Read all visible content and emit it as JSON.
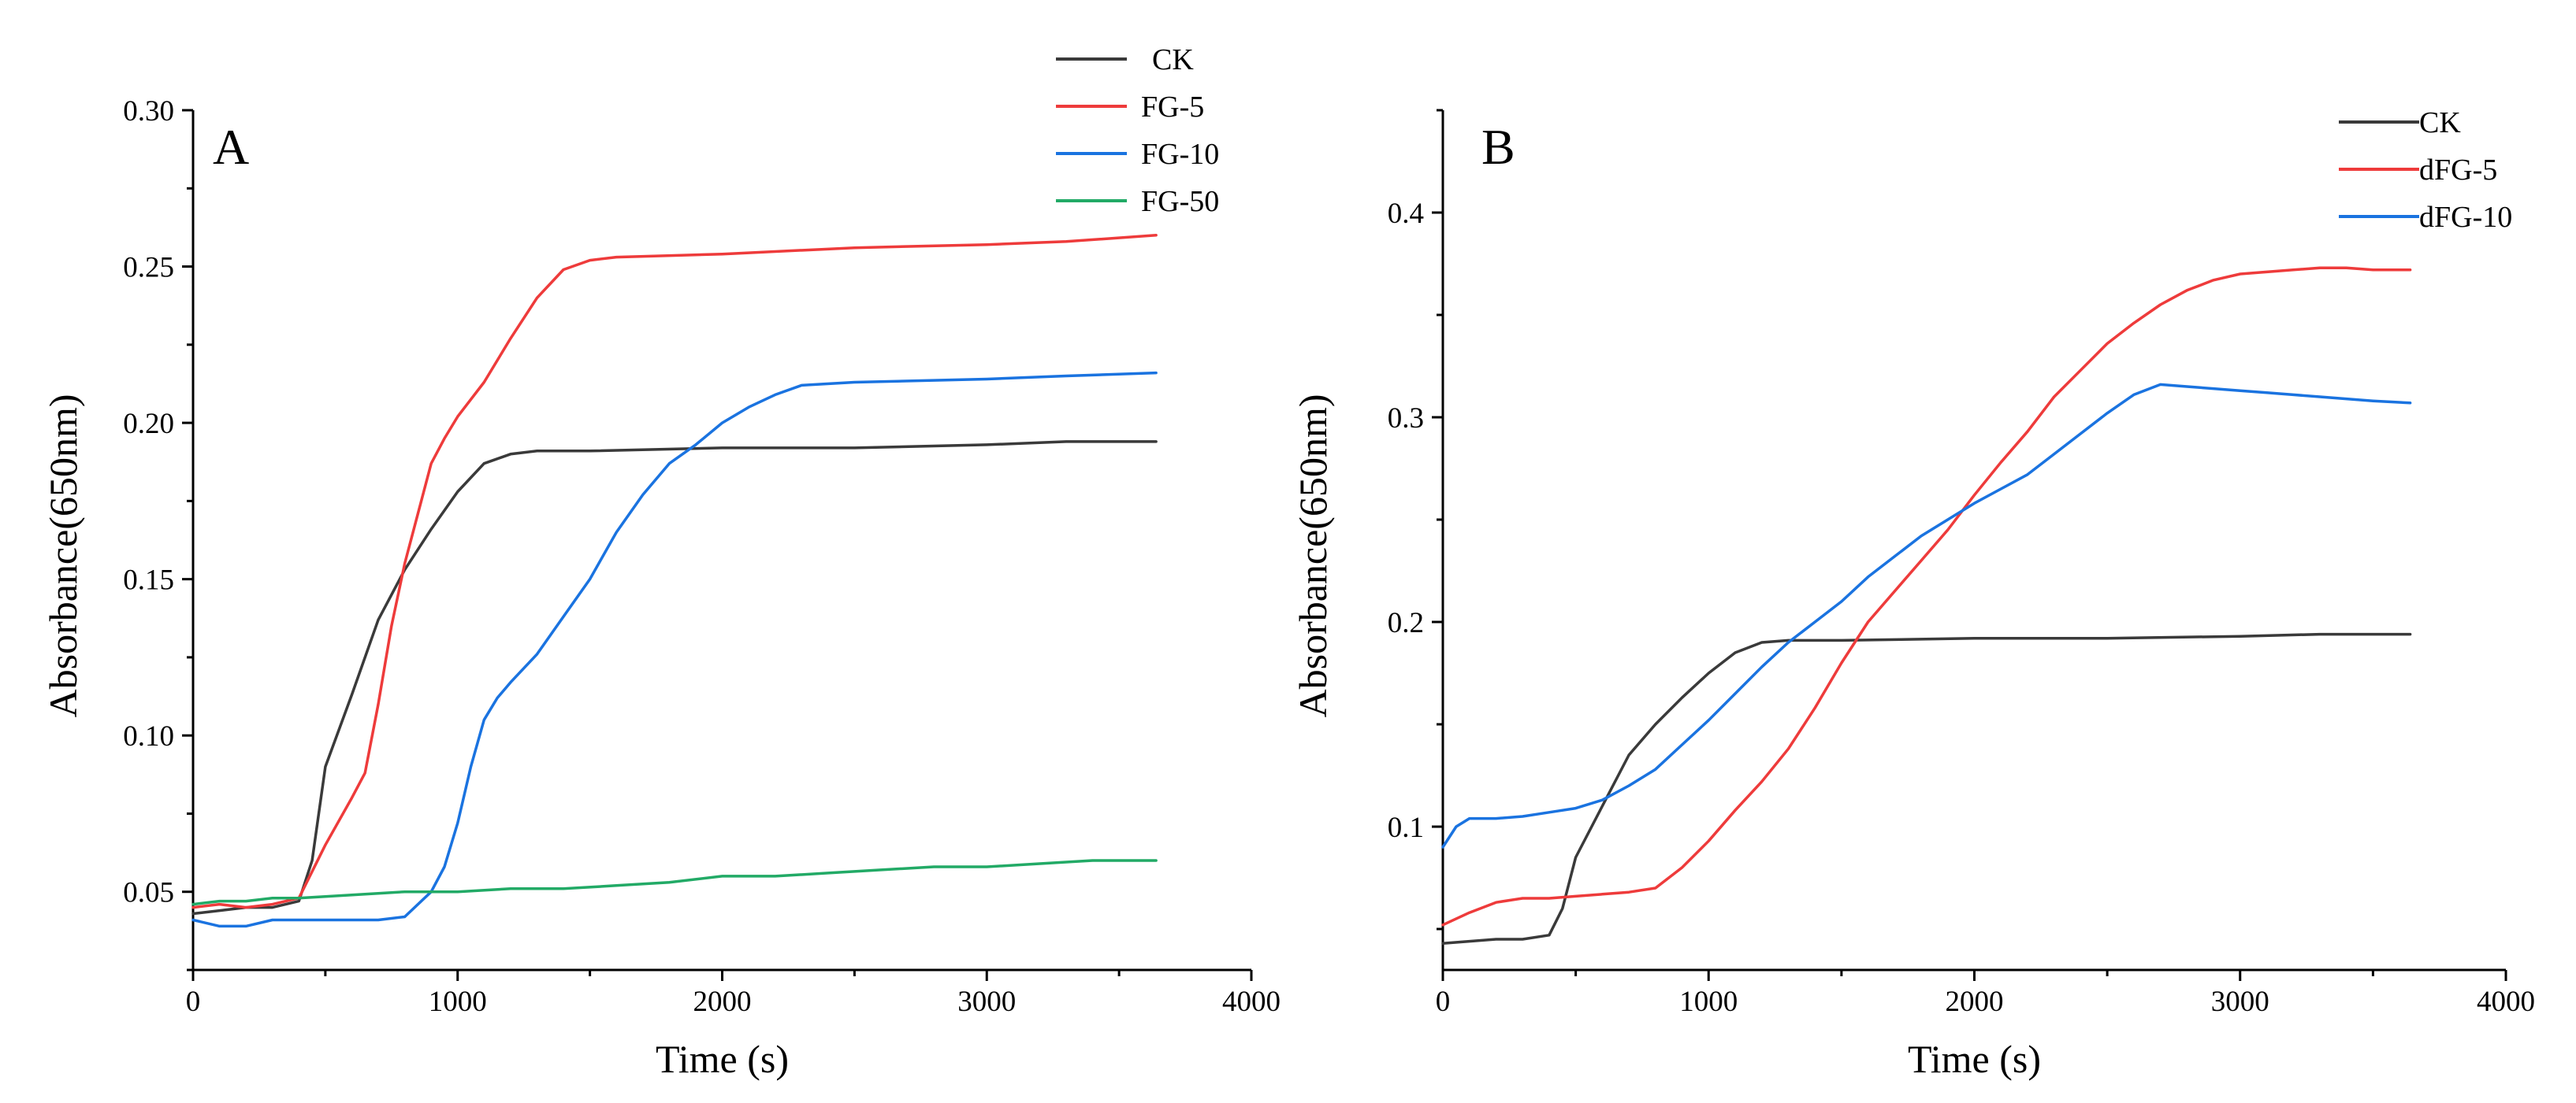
{
  "chart_data": [
    {
      "type": "line",
      "panel_label": "A",
      "title": "",
      "xlabel": "Time (s)",
      "ylabel": "Absorbance(650nm)",
      "xlim": [
        0,
        4000
      ],
      "ylim": [
        0.025,
        0.3
      ],
      "xticks": [
        0,
        1000,
        2000,
        3000,
        4000
      ],
      "xtick_labels": [
        "0",
        "1000",
        "2000",
        "3000",
        "4000"
      ],
      "yticks": [
        0.05,
        0.1,
        0.15,
        0.2,
        0.25,
        0.3
      ],
      "ytick_labels": [
        "0.05",
        "0.10",
        "0.15",
        "0.20",
        "0.25",
        "0.30"
      ],
      "legend_position": "top-right",
      "series": [
        {
          "name": "CK",
          "color": "#3a3a3a",
          "x": [
            0,
            100,
            200,
            300,
            400,
            450,
            500,
            600,
            700,
            800,
            900,
            1000,
            1100,
            1200,
            1300,
            1400,
            1500,
            2000,
            2500,
            3000,
            3300,
            3640
          ],
          "y": [
            0.043,
            0.044,
            0.045,
            0.045,
            0.047,
            0.06,
            0.09,
            0.113,
            0.137,
            0.153,
            0.166,
            0.178,
            0.187,
            0.19,
            0.191,
            0.191,
            0.191,
            0.192,
            0.192,
            0.193,
            0.194,
            0.194
          ]
        },
        {
          "name": "FG-5",
          "color": "#ee3b3b",
          "x": [
            0,
            100,
            200,
            300,
            400,
            500,
            600,
            650,
            700,
            750,
            800,
            900,
            950,
            1000,
            1100,
            1200,
            1300,
            1400,
            1500,
            1600,
            2000,
            2500,
            3000,
            3300,
            3640
          ],
          "y": [
            0.045,
            0.046,
            0.045,
            0.046,
            0.048,
            0.065,
            0.08,
            0.088,
            0.11,
            0.135,
            0.155,
            0.187,
            0.195,
            0.202,
            0.213,
            0.227,
            0.24,
            0.249,
            0.252,
            0.253,
            0.254,
            0.256,
            0.257,
            0.258,
            0.26
          ]
        },
        {
          "name": "FG-10",
          "color": "#1a73e0",
          "x": [
            0,
            100,
            200,
            300,
            400,
            500,
            600,
            700,
            800,
            900,
            950,
            1000,
            1050,
            1100,
            1150,
            1200,
            1300,
            1400,
            1500,
            1600,
            1700,
            1800,
            1900,
            2000,
            2100,
            2200,
            2300,
            2500,
            3000,
            3300,
            3640
          ],
          "y": [
            0.041,
            0.039,
            0.039,
            0.041,
            0.041,
            0.041,
            0.041,
            0.041,
            0.042,
            0.05,
            0.058,
            0.072,
            0.09,
            0.105,
            0.112,
            0.117,
            0.126,
            0.138,
            0.15,
            0.165,
            0.177,
            0.187,
            0.193,
            0.2,
            0.205,
            0.209,
            0.212,
            0.213,
            0.214,
            0.215,
            0.216
          ]
        },
        {
          "name": "FG-50",
          "color": "#22aa66",
          "x": [
            0,
            100,
            200,
            300,
            400,
            600,
            800,
            1000,
            1200,
            1400,
            1600,
            1800,
            2000,
            2200,
            2400,
            2600,
            2800,
            3000,
            3200,
            3400,
            3640
          ],
          "y": [
            0.046,
            0.047,
            0.047,
            0.048,
            0.048,
            0.049,
            0.05,
            0.05,
            0.051,
            0.051,
            0.052,
            0.053,
            0.055,
            0.055,
            0.056,
            0.057,
            0.058,
            0.058,
            0.059,
            0.06,
            0.06
          ]
        }
      ]
    },
    {
      "type": "line",
      "panel_label": "B",
      "title": "",
      "xlabel": "Time (s)",
      "ylabel": "Absorbance(650nm)",
      "xlim": [
        0,
        4000
      ],
      "ylim": [
        0.03,
        0.45
      ],
      "xticks": [
        0,
        1000,
        2000,
        3000,
        4000
      ],
      "xtick_labels": [
        "0",
        "1000",
        "2000",
        "3000",
        "4000"
      ],
      "yticks": [
        0.1,
        0.2,
        0.3,
        0.4
      ],
      "ytick_labels": [
        "0.1",
        "0.2",
        "0.3",
        "0.4"
      ],
      "legend_position": "top-right",
      "series": [
        {
          "name": "CK",
          "color": "#3a3a3a",
          "x": [
            0,
            100,
            200,
            300,
            400,
            450,
            500,
            600,
            700,
            800,
            900,
            1000,
            1100,
            1200,
            1300,
            1500,
            2000,
            2500,
            3000,
            3300,
            3640
          ],
          "y": [
            0.043,
            0.044,
            0.045,
            0.045,
            0.047,
            0.06,
            0.085,
            0.11,
            0.135,
            0.15,
            0.163,
            0.175,
            0.185,
            0.19,
            0.191,
            0.191,
            0.192,
            0.192,
            0.193,
            0.194,
            0.194
          ]
        },
        {
          "name": "dFG-5",
          "color": "#ee3b3b",
          "x": [
            0,
            100,
            200,
            300,
            400,
            500,
            600,
            700,
            800,
            900,
            1000,
            1100,
            1200,
            1300,
            1400,
            1500,
            1600,
            1700,
            1800,
            1900,
            2000,
            2100,
            2200,
            2300,
            2400,
            2500,
            2600,
            2700,
            2800,
            2900,
            3000,
            3100,
            3200,
            3300,
            3400,
            3500,
            3640
          ],
          "y": [
            0.052,
            0.058,
            0.063,
            0.065,
            0.065,
            0.066,
            0.067,
            0.068,
            0.07,
            0.08,
            0.093,
            0.108,
            0.122,
            0.138,
            0.158,
            0.18,
            0.2,
            0.215,
            0.23,
            0.245,
            0.262,
            0.278,
            0.293,
            0.31,
            0.323,
            0.336,
            0.346,
            0.355,
            0.362,
            0.367,
            0.37,
            0.371,
            0.372,
            0.373,
            0.373,
            0.372,
            0.372
          ]
        },
        {
          "name": "dFG-10",
          "color": "#1a73e0",
          "x": [
            0,
            50,
            100,
            200,
            300,
            400,
            500,
            600,
            700,
            800,
            900,
            1000,
            1100,
            1200,
            1300,
            1400,
            1500,
            1600,
            1700,
            1800,
            1900,
            2000,
            2100,
            2200,
            2300,
            2400,
            2500,
            2600,
            2700,
            2800,
            2900,
            3000,
            3100,
            3200,
            3300,
            3400,
            3500,
            3640
          ],
          "y": [
            0.09,
            0.1,
            0.104,
            0.104,
            0.105,
            0.107,
            0.109,
            0.113,
            0.12,
            0.128,
            0.14,
            0.152,
            0.165,
            0.178,
            0.19,
            0.2,
            0.21,
            0.222,
            0.232,
            0.242,
            0.25,
            0.258,
            0.265,
            0.272,
            0.282,
            0.292,
            0.302,
            0.311,
            0.316,
            0.315,
            0.314,
            0.313,
            0.312,
            0.311,
            0.31,
            0.309,
            0.308,
            0.307
          ]
        }
      ]
    }
  ]
}
